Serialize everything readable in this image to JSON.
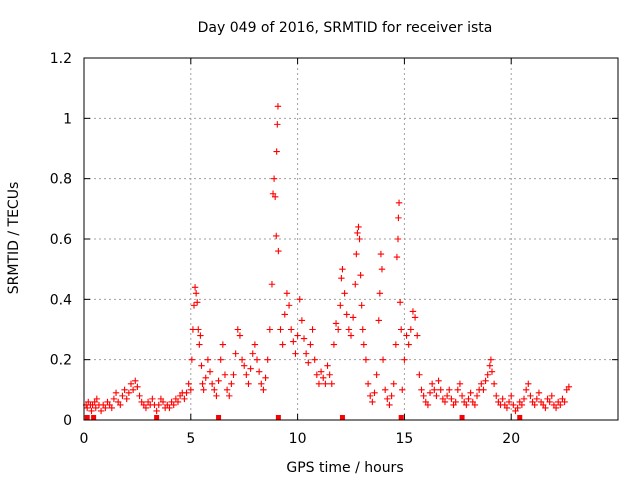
{
  "chart_data": {
    "type": "scatter",
    "title": "Day 049 of 2016, SRMTID for receiver ista",
    "xlabel": "GPS time / hours",
    "ylabel": "SRMTID / TECUs",
    "xlim": [
      0,
      25.0
    ],
    "ylim": [
      0,
      1.2
    ],
    "xticks": [
      0,
      5,
      10,
      15,
      20
    ],
    "xtick_labels": [
      "0",
      "5",
      "10",
      "15",
      "20"
    ],
    "yticks": [
      0,
      0.2,
      0.4,
      0.6,
      0.8,
      1,
      1.2
    ],
    "ytick_labels": [
      "0",
      "0.2",
      "0.4",
      "0.6",
      "0.8",
      "1",
      "1.2"
    ],
    "grid": true,
    "marker": "+",
    "color": "#ff0000",
    "series": [
      {
        "name": "SRMTID",
        "points": [
          [
            0.1,
            0.05
          ],
          [
            0.15,
            0.04
          ],
          [
            0.2,
            0.06
          ],
          [
            0.3,
            0.05
          ],
          [
            0.35,
            0.03
          ],
          [
            0.4,
            0.05
          ],
          [
            0.5,
            0.06
          ],
          [
            0.55,
            0.04
          ],
          [
            0.6,
            0.07
          ],
          [
            0.7,
            0.05
          ],
          [
            0.8,
            0.03
          ],
          [
            0.9,
            0.05
          ],
          [
            1.0,
            0.04
          ],
          [
            1.1,
            0.06
          ],
          [
            1.2,
            0.05
          ],
          [
            1.3,
            0.04
          ],
          [
            1.4,
            0.07
          ],
          [
            1.5,
            0.09
          ],
          [
            1.6,
            0.06
          ],
          [
            1.7,
            0.05
          ],
          [
            1.8,
            0.08
          ],
          [
            1.9,
            0.1
          ],
          [
            2.0,
            0.07
          ],
          [
            2.1,
            0.09
          ],
          [
            2.2,
            0.12
          ],
          [
            2.3,
            0.1
          ],
          [
            2.4,
            0.13
          ],
          [
            2.5,
            0.11
          ],
          [
            2.6,
            0.08
          ],
          [
            2.7,
            0.06
          ],
          [
            2.8,
            0.05
          ],
          [
            2.9,
            0.04
          ],
          [
            3.0,
            0.06
          ],
          [
            3.1,
            0.05
          ],
          [
            3.2,
            0.07
          ],
          [
            3.3,
            0.05
          ],
          [
            3.4,
            0.03
          ],
          [
            3.5,
            0.05
          ],
          [
            3.6,
            0.07
          ],
          [
            3.7,
            0.06
          ],
          [
            3.8,
            0.04
          ],
          [
            3.9,
            0.05
          ],
          [
            4.0,
            0.04
          ],
          [
            4.1,
            0.06
          ],
          [
            4.2,
            0.05
          ],
          [
            4.3,
            0.07
          ],
          [
            4.4,
            0.06
          ],
          [
            4.5,
            0.08
          ],
          [
            4.6,
            0.09
          ],
          [
            4.7,
            0.07
          ],
          [
            4.8,
            0.09
          ],
          [
            4.9,
            0.12
          ],
          [
            5.0,
            0.1
          ],
          [
            5.05,
            0.2
          ],
          [
            5.1,
            0.3
          ],
          [
            5.15,
            0.38
          ],
          [
            5.2,
            0.44
          ],
          [
            5.25,
            0.42
          ],
          [
            5.3,
            0.39
          ],
          [
            5.35,
            0.3
          ],
          [
            5.4,
            0.25
          ],
          [
            5.45,
            0.28
          ],
          [
            5.5,
            0.18
          ],
          [
            5.55,
            0.12
          ],
          [
            5.6,
            0.1
          ],
          [
            5.7,
            0.14
          ],
          [
            5.8,
            0.2
          ],
          [
            5.9,
            0.16
          ],
          [
            6.0,
            0.12
          ],
          [
            6.1,
            0.1
          ],
          [
            6.2,
            0.08
          ],
          [
            6.3,
            0.13
          ],
          [
            6.4,
            0.2
          ],
          [
            6.5,
            0.25
          ],
          [
            6.6,
            0.15
          ],
          [
            6.7,
            0.1
          ],
          [
            6.8,
            0.08
          ],
          [
            6.9,
            0.12
          ],
          [
            7.0,
            0.15
          ],
          [
            7.1,
            0.22
          ],
          [
            7.2,
            0.3
          ],
          [
            7.3,
            0.28
          ],
          [
            7.4,
            0.2
          ],
          [
            7.5,
            0.18
          ],
          [
            7.6,
            0.15
          ],
          [
            7.7,
            0.12
          ],
          [
            7.8,
            0.17
          ],
          [
            7.9,
            0.22
          ],
          [
            8.0,
            0.25
          ],
          [
            8.1,
            0.2
          ],
          [
            8.2,
            0.16
          ],
          [
            8.3,
            0.12
          ],
          [
            8.4,
            0.1
          ],
          [
            8.5,
            0.14
          ],
          [
            8.6,
            0.2
          ],
          [
            8.7,
            0.3
          ],
          [
            8.8,
            0.45
          ],
          [
            8.85,
            0.75
          ],
          [
            8.9,
            0.8
          ],
          [
            8.95,
            0.74
          ],
          [
            9.0,
            0.61
          ],
          [
            9.02,
            0.89
          ],
          [
            9.05,
            0.98
          ],
          [
            9.08,
            1.04
          ],
          [
            9.1,
            0.56
          ],
          [
            9.2,
            0.3
          ],
          [
            9.3,
            0.25
          ],
          [
            9.4,
            0.35
          ],
          [
            9.5,
            0.42
          ],
          [
            9.6,
            0.38
          ],
          [
            9.7,
            0.3
          ],
          [
            9.8,
            0.26
          ],
          [
            9.9,
            0.22
          ],
          [
            10.0,
            0.28
          ],
          [
            10.1,
            0.4
          ],
          [
            10.2,
            0.33
          ],
          [
            10.3,
            0.27
          ],
          [
            10.4,
            0.22
          ],
          [
            10.5,
            0.19
          ],
          [
            10.6,
            0.25
          ],
          [
            10.7,
            0.3
          ],
          [
            10.8,
            0.2
          ],
          [
            10.9,
            0.15
          ],
          [
            11.0,
            0.12
          ],
          [
            11.1,
            0.16
          ],
          [
            11.2,
            0.14
          ],
          [
            11.3,
            0.12
          ],
          [
            11.4,
            0.18
          ],
          [
            11.5,
            0.15
          ],
          [
            11.6,
            0.12
          ],
          [
            11.7,
            0.25
          ],
          [
            11.8,
            0.32
          ],
          [
            11.9,
            0.3
          ],
          [
            12.0,
            0.38
          ],
          [
            12.05,
            0.47
          ],
          [
            12.1,
            0.5
          ],
          [
            12.2,
            0.42
          ],
          [
            12.3,
            0.35
          ],
          [
            12.4,
            0.3
          ],
          [
            12.5,
            0.28
          ],
          [
            12.6,
            0.34
          ],
          [
            12.7,
            0.45
          ],
          [
            12.75,
            0.55
          ],
          [
            12.8,
            0.62
          ],
          [
            12.85,
            0.64
          ],
          [
            12.9,
            0.6
          ],
          [
            12.95,
            0.48
          ],
          [
            13.0,
            0.38
          ],
          [
            13.05,
            0.3
          ],
          [
            13.1,
            0.25
          ],
          [
            13.2,
            0.2
          ],
          [
            13.3,
            0.12
          ],
          [
            13.4,
            0.08
          ],
          [
            13.5,
            0.06
          ],
          [
            13.6,
            0.09
          ],
          [
            13.7,
            0.15
          ],
          [
            13.8,
            0.33
          ],
          [
            13.85,
            0.42
          ],
          [
            13.9,
            0.55
          ],
          [
            13.95,
            0.5
          ],
          [
            14.0,
            0.2
          ],
          [
            14.1,
            0.1
          ],
          [
            14.2,
            0.07
          ],
          [
            14.3,
            0.05
          ],
          [
            14.4,
            0.08
          ],
          [
            14.5,
            0.12
          ],
          [
            14.6,
            0.25
          ],
          [
            14.65,
            0.54
          ],
          [
            14.7,
            0.6
          ],
          [
            14.72,
            0.67
          ],
          [
            14.75,
            0.72
          ],
          [
            14.8,
            0.39
          ],
          [
            14.85,
            0.3
          ],
          [
            14.9,
            0.1
          ],
          [
            15.0,
            0.2
          ],
          [
            15.1,
            0.28
          ],
          [
            15.2,
            0.25
          ],
          [
            15.3,
            0.3
          ],
          [
            15.4,
            0.36
          ],
          [
            15.5,
            0.34
          ],
          [
            15.6,
            0.28
          ],
          [
            15.7,
            0.15
          ],
          [
            15.8,
            0.1
          ],
          [
            15.9,
            0.08
          ],
          [
            16.0,
            0.06
          ],
          [
            16.1,
            0.05
          ],
          [
            16.2,
            0.09
          ],
          [
            16.3,
            0.12
          ],
          [
            16.4,
            0.1
          ],
          [
            16.5,
            0.08
          ],
          [
            16.6,
            0.13
          ],
          [
            16.7,
            0.1
          ],
          [
            16.8,
            0.07
          ],
          [
            16.9,
            0.06
          ],
          [
            17.0,
            0.08
          ],
          [
            17.1,
            0.1
          ],
          [
            17.2,
            0.07
          ],
          [
            17.3,
            0.05
          ],
          [
            17.4,
            0.06
          ],
          [
            17.5,
            0.1
          ],
          [
            17.6,
            0.12
          ],
          [
            17.7,
            0.08
          ],
          [
            17.8,
            0.06
          ],
          [
            17.9,
            0.05
          ],
          [
            18.0,
            0.07
          ],
          [
            18.1,
            0.09
          ],
          [
            18.2,
            0.06
          ],
          [
            18.3,
            0.05
          ],
          [
            18.4,
            0.08
          ],
          [
            18.5,
            0.1
          ],
          [
            18.6,
            0.12
          ],
          [
            18.7,
            0.1
          ],
          [
            18.8,
            0.13
          ],
          [
            18.9,
            0.15
          ],
          [
            19.0,
            0.18
          ],
          [
            19.05,
            0.2
          ],
          [
            19.1,
            0.16
          ],
          [
            19.2,
            0.12
          ],
          [
            19.3,
            0.08
          ],
          [
            19.4,
            0.06
          ],
          [
            19.5,
            0.05
          ],
          [
            19.6,
            0.07
          ],
          [
            19.7,
            0.05
          ],
          [
            19.8,
            0.04
          ],
          [
            19.9,
            0.06
          ],
          [
            20.0,
            0.08
          ],
          [
            20.1,
            0.05
          ],
          [
            20.2,
            0.03
          ],
          [
            20.3,
            0.04
          ],
          [
            20.4,
            0.06
          ],
          [
            20.5,
            0.05
          ],
          [
            20.6,
            0.07
          ],
          [
            20.7,
            0.1
          ],
          [
            20.8,
            0.12
          ],
          [
            20.9,
            0.08
          ],
          [
            21.0,
            0.06
          ],
          [
            21.1,
            0.05
          ],
          [
            21.2,
            0.07
          ],
          [
            21.3,
            0.09
          ],
          [
            21.4,
            0.06
          ],
          [
            21.5,
            0.05
          ],
          [
            21.6,
            0.04
          ],
          [
            21.7,
            0.07
          ],
          [
            21.8,
            0.06
          ],
          [
            21.9,
            0.08
          ],
          [
            22.0,
            0.05
          ],
          [
            22.1,
            0.04
          ],
          [
            22.2,
            0.06
          ],
          [
            22.3,
            0.05
          ],
          [
            22.4,
            0.07
          ],
          [
            22.5,
            0.06
          ],
          [
            22.6,
            0.1
          ],
          [
            22.7,
            0.11
          ]
        ]
      }
    ],
    "gap_markers_x": [
      0.15,
      0.45,
      3.4,
      6.3,
      9.1,
      12.1,
      14.85,
      17.7,
      20.4
    ]
  }
}
